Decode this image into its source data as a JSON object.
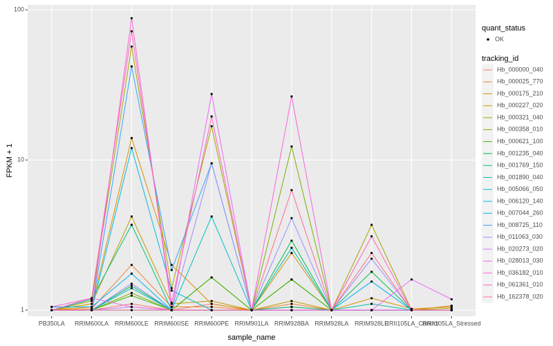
{
  "chart_data": {
    "type": "line",
    "log_y": true,
    "grid": true,
    "y_label": "FPKM + 1",
    "x_label": "sample_name",
    "categories": [
      "PB350LA",
      "RRIM600LA",
      "RRIM600LE",
      "RRIM600SE",
      "RRIM600PE",
      "RRIM901LA",
      "RRIM928BA",
      "RRIM928LA",
      "RRIM928LE",
      "RRII105LA_Control",
      "RRII105LA_Stressed"
    ],
    "ylim": [
      0.91,
      108
    ],
    "yticks": [
      1,
      10,
      100
    ],
    "shape_legend": {
      "title": "quant_status",
      "labels": [
        "OK"
      ]
    },
    "color_legend_title": "tracking_id",
    "point_color": "#000000",
    "series": [
      {
        "name": "Hb_000000_040",
        "color": "#F8766D",
        "values": [
          1.0,
          1.0,
          1.1,
          1.0,
          1.1,
          1.0,
          1.05,
          1.0,
          1.0,
          1.0,
          1.0
        ]
      },
      {
        "name": "Hb_000025_770",
        "color": "#EA8331",
        "values": [
          1.0,
          1.02,
          2.0,
          1.05,
          1.05,
          1.0,
          1.1,
          1.0,
          1.0,
          1.0,
          1.07
        ]
      },
      {
        "name": "Hb_000175_210",
        "color": "#D89000",
        "values": [
          1.0,
          1.05,
          14,
          2.0,
          1.1,
          1.0,
          2.4,
          1.0,
          1.2,
          1.02,
          1.05
        ]
      },
      {
        "name": "Hb_000227_020",
        "color": "#C09B00",
        "values": [
          1.0,
          1.1,
          4.2,
          1.1,
          1.15,
          1.0,
          1.15,
          1.0,
          1.0,
          1.0,
          1.0
        ]
      },
      {
        "name": "Hb_000321_040",
        "color": "#A3A500",
        "values": [
          1.0,
          1.15,
          57,
          1.4,
          16.8,
          1.0,
          1.6,
          1.0,
          3.7,
          1.0,
          1.03
        ]
      },
      {
        "name": "Hb_000358_010",
        "color": "#7CAE00",
        "values": [
          1.0,
          1.0,
          1.3,
          1.0,
          1.65,
          1.0,
          12.3,
          1.0,
          1.0,
          1.0,
          1.0
        ]
      },
      {
        "name": "Hb_000621_100",
        "color": "#39B600",
        "values": [
          1.0,
          1.0,
          1.25,
          1.0,
          1.65,
          1.0,
          1.6,
          1.0,
          1.0,
          1.0,
          1.0
        ]
      },
      {
        "name": "Hb_001235_040",
        "color": "#00BB4E",
        "values": [
          1.0,
          1.0,
          1.45,
          1.0,
          1.0,
          1.0,
          2.9,
          1.0,
          1.8,
          1.0,
          1.0
        ]
      },
      {
        "name": "Hb_001769_150",
        "color": "#00BF7D",
        "values": [
          1.0,
          1.18,
          3.7,
          1.0,
          1.0,
          1.0,
          1.05,
          1.0,
          1.0,
          1.0,
          1.0
        ]
      },
      {
        "name": "Hb_001890_040",
        "color": "#00C1A3",
        "values": [
          1.0,
          1.0,
          1.0,
          1.0,
          1.0,
          1.0,
          2.6,
          1.0,
          1.1,
          1.0,
          1.0
        ]
      },
      {
        "name": "Hb_005066_050",
        "color": "#00BFC4",
        "values": [
          1.0,
          1.0,
          1.4,
          1.0,
          4.2,
          1.0,
          1.0,
          1.0,
          1.0,
          1.0,
          1.0
        ]
      },
      {
        "name": "Hb_006120_140",
        "color": "#00BAE0",
        "values": [
          1.0,
          1.0,
          12,
          1.35,
          1.0,
          1.0,
          1.0,
          1.0,
          1.0,
          1.0,
          1.0
        ]
      },
      {
        "name": "Hb_007044_260",
        "color": "#00B0F6",
        "values": [
          1.05,
          1.05,
          1.75,
          1.0,
          1.0,
          1.0,
          1.0,
          1.0,
          1.55,
          1.0,
          1.0
        ]
      },
      {
        "name": "Hb_008725_110",
        "color": "#35A2FF",
        "values": [
          1.0,
          1.0,
          42,
          1.85,
          9.5,
          1.0,
          1.0,
          1.0,
          1.0,
          1.0,
          1.0
        ]
      },
      {
        "name": "Hb_011063_030",
        "color": "#9590FF",
        "values": [
          1.0,
          1.0,
          1.5,
          1.0,
          9.5,
          1.0,
          4.1,
          1.0,
          2.2,
          1.0,
          1.0
        ]
      },
      {
        "name": "Hb_020273_020",
        "color": "#C77CFF",
        "values": [
          1.0,
          1.0,
          1.05,
          1.0,
          1.0,
          1.0,
          1.0,
          1.0,
          1.0,
          1.0,
          1.0
        ]
      },
      {
        "name": "Hb_028013_030",
        "color": "#E76BF3",
        "values": [
          1.0,
          1.2,
          1.05,
          1.0,
          27.5,
          1.0,
          1.0,
          1.0,
          1.0,
          1.6,
          1.18
        ]
      },
      {
        "name": "Hb_036182_010",
        "color": "#FA62DB",
        "values": [
          1.0,
          1.0,
          88,
          1.0,
          1.0,
          1.0,
          26.5,
          1.0,
          1.0,
          1.0,
          1.0
        ]
      },
      {
        "name": "Hb_061361_010",
        "color": "#FF62BC",
        "values": [
          1.05,
          1.2,
          72,
          1.12,
          19.5,
          1.0,
          1.0,
          1.0,
          3.1,
          1.0,
          1.0
        ]
      },
      {
        "name": "Hb_162378_020",
        "color": "#FF6C91",
        "values": [
          1.0,
          1.0,
          1.0,
          1.0,
          1.0,
          1.0,
          6.3,
          1.0,
          2.4,
          1.0,
          1.0
        ]
      }
    ]
  }
}
